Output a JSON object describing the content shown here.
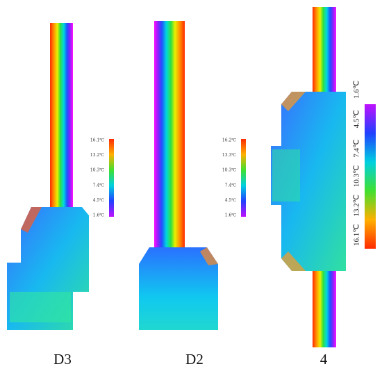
{
  "panels": [
    {
      "label": "D3",
      "scale": [
        "16.1℃",
        "13.2℃",
        "10.3℃",
        "7.4℃",
        "4.5℃",
        "1.6℃"
      ]
    },
    {
      "label": "D2",
      "scale": [
        "16.2℃",
        "13.3℃",
        "10.3℃",
        "7.4℃",
        "4.5℃",
        "1.6℃"
      ]
    },
    {
      "label": "4",
      "scale": [
        "16.1℃",
        "13.2℃",
        "10.3℃",
        "7.4℃",
        "4.5℃",
        "1.6℃"
      ]
    }
  ]
}
